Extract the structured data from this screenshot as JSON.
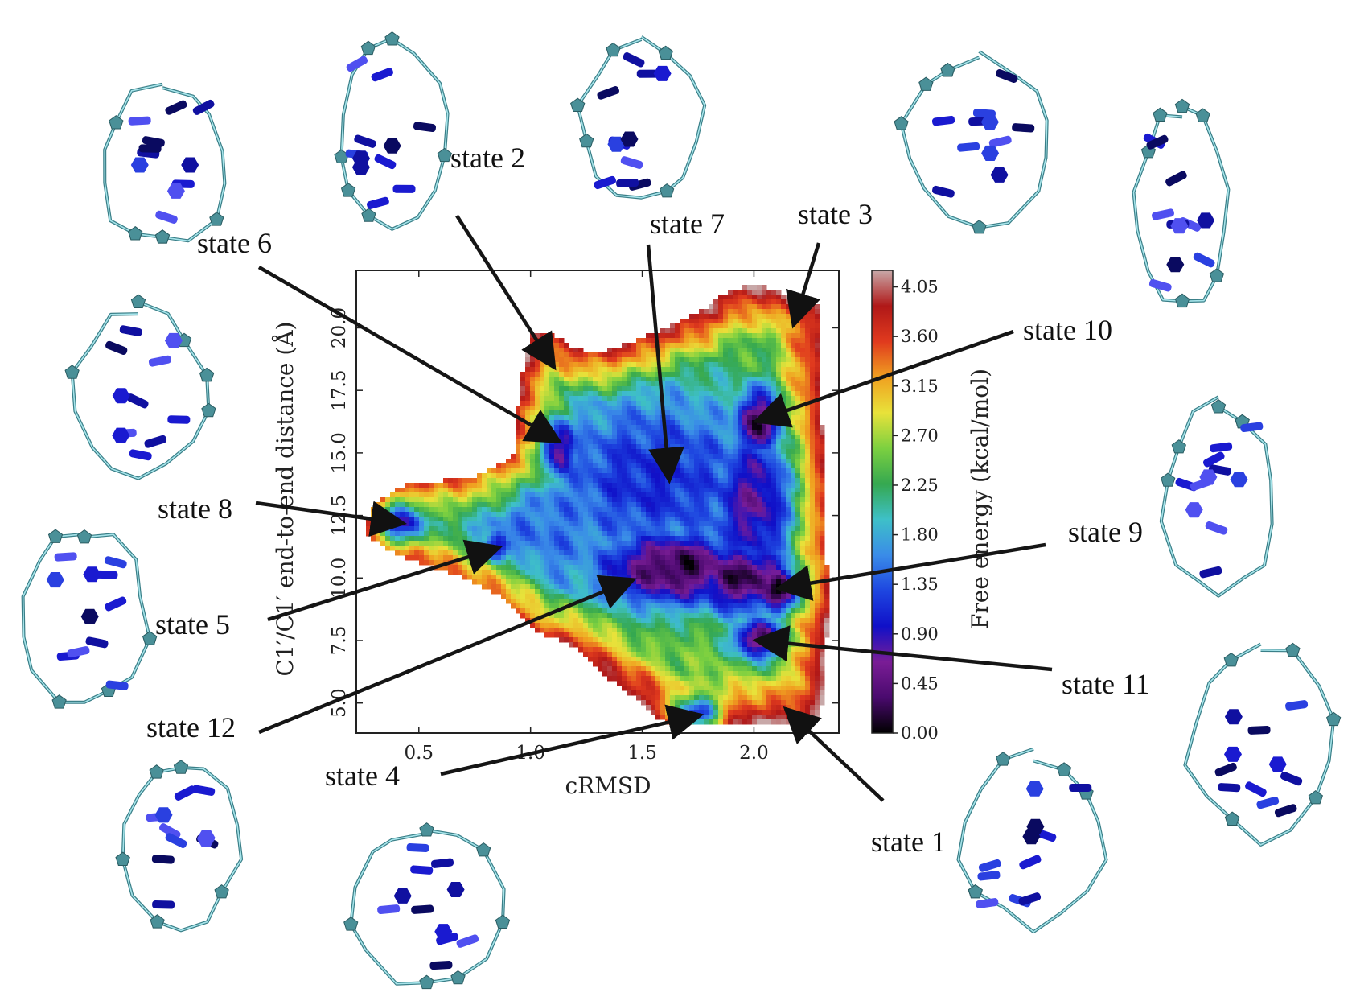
{
  "chart_data": {
    "type": "heatmap",
    "xlabel": "cRMSD",
    "ylabel": "C1′/C1′ end-to-end distance (Å)",
    "x_ticks": [
      "0.5",
      "1.0",
      "1.5",
      "2.0"
    ],
    "y_ticks": [
      "5.0",
      "7.5",
      "10.0",
      "12.5",
      "15.0",
      "17.5",
      "20.0"
    ],
    "xlim": [
      0.22,
      2.38
    ],
    "ylim": [
      3.8,
      22.3
    ],
    "colorbar": {
      "label": "Free energy (kcal/mol)",
      "ticks": [
        "0.00",
        "0.45",
        "0.90",
        "1.35",
        "1.80",
        "2.25",
        "2.70",
        "3.15",
        "3.60",
        "4.05"
      ],
      "range": [
        0.0,
        4.2
      ],
      "colors": [
        "#000000",
        "#4a0a6e",
        "#7a1d96",
        "#1010c8",
        "#1e46e0",
        "#3a8ce8",
        "#3ec0c8",
        "#35a850",
        "#7cd040",
        "#e8e23a",
        "#f0a020",
        "#e03a1e",
        "#b01818",
        "#c8a8a8"
      ]
    },
    "states": [
      {
        "label": "state 1",
        "x": 2.15,
        "y": 4.7
      },
      {
        "label": "state 2",
        "x": 1.1,
        "y": 18.5
      },
      {
        "label": "state 3",
        "x": 2.18,
        "y": 20.2
      },
      {
        "label": "state 4",
        "x": 1.75,
        "y": 4.5
      },
      {
        "label": "state 5",
        "x": 0.85,
        "y": 11.2
      },
      {
        "label": "state 6",
        "x": 1.12,
        "y": 15.5
      },
      {
        "label": "state 7",
        "x": 1.62,
        "y": 14.0
      },
      {
        "label": "state 8",
        "x": 0.42,
        "y": 12.2
      },
      {
        "label": "state 9",
        "x": 2.12,
        "y": 9.6
      },
      {
        "label": "state 10",
        "x": 2.02,
        "y": 16.3
      },
      {
        "label": "state 11",
        "x": 2.02,
        "y": 7.5
      },
      {
        "label": "state 12",
        "x": 1.45,
        "y": 9.9
      }
    ],
    "basins": [
      {
        "x": 1.65,
        "y": 10.4,
        "dx": 0.28,
        "dy": 1.2,
        "g": 0.15
      },
      {
        "x": 1.95,
        "y": 10.0,
        "dx": 0.2,
        "dy": 1.1,
        "g": 0.2
      },
      {
        "x": 2.12,
        "y": 9.6,
        "dx": 0.08,
        "dy": 0.8,
        "g": 0.0
      },
      {
        "x": 2.02,
        "y": 7.6,
        "dx": 0.09,
        "dy": 0.6,
        "g": 0.3
      },
      {
        "x": 2.02,
        "y": 16.2,
        "dx": 0.09,
        "dy": 1.1,
        "g": 0.3
      },
      {
        "x": 2.0,
        "y": 13.0,
        "dx": 0.18,
        "dy": 2.5,
        "g": 0.7
      },
      {
        "x": 1.12,
        "y": 15.2,
        "dx": 0.07,
        "dy": 1.0,
        "g": 0.4
      },
      {
        "x": 0.42,
        "y": 12.2,
        "dx": 0.09,
        "dy": 0.8,
        "g": 0.25
      },
      {
        "x": 0.85,
        "y": 11.2,
        "dx": 0.05,
        "dy": 0.6,
        "g": 0.5
      },
      {
        "x": 1.75,
        "y": 4.6,
        "dx": 0.08,
        "dy": 0.5,
        "g": 0.0
      },
      {
        "x": 1.55,
        "y": 14.0,
        "dx": 0.45,
        "dy": 3.0,
        "g": 1.1
      },
      {
        "x": 1.1,
        "y": 12.0,
        "dx": 0.5,
        "dy": 3.0,
        "g": 1.5
      }
    ]
  },
  "structures": [
    {
      "name": "structure-top-left"
    },
    {
      "name": "structure-state2"
    },
    {
      "name": "structure-state7"
    },
    {
      "name": "structure-state3"
    },
    {
      "name": "structure-far-right-top"
    },
    {
      "name": "structure-left-mid"
    },
    {
      "name": "structure-left-lower"
    },
    {
      "name": "structure-bottom-left"
    },
    {
      "name": "structure-bottom-center"
    },
    {
      "name": "structure-bottom-right"
    },
    {
      "name": "structure-right-mid"
    },
    {
      "name": "structure-right-lower"
    }
  ]
}
